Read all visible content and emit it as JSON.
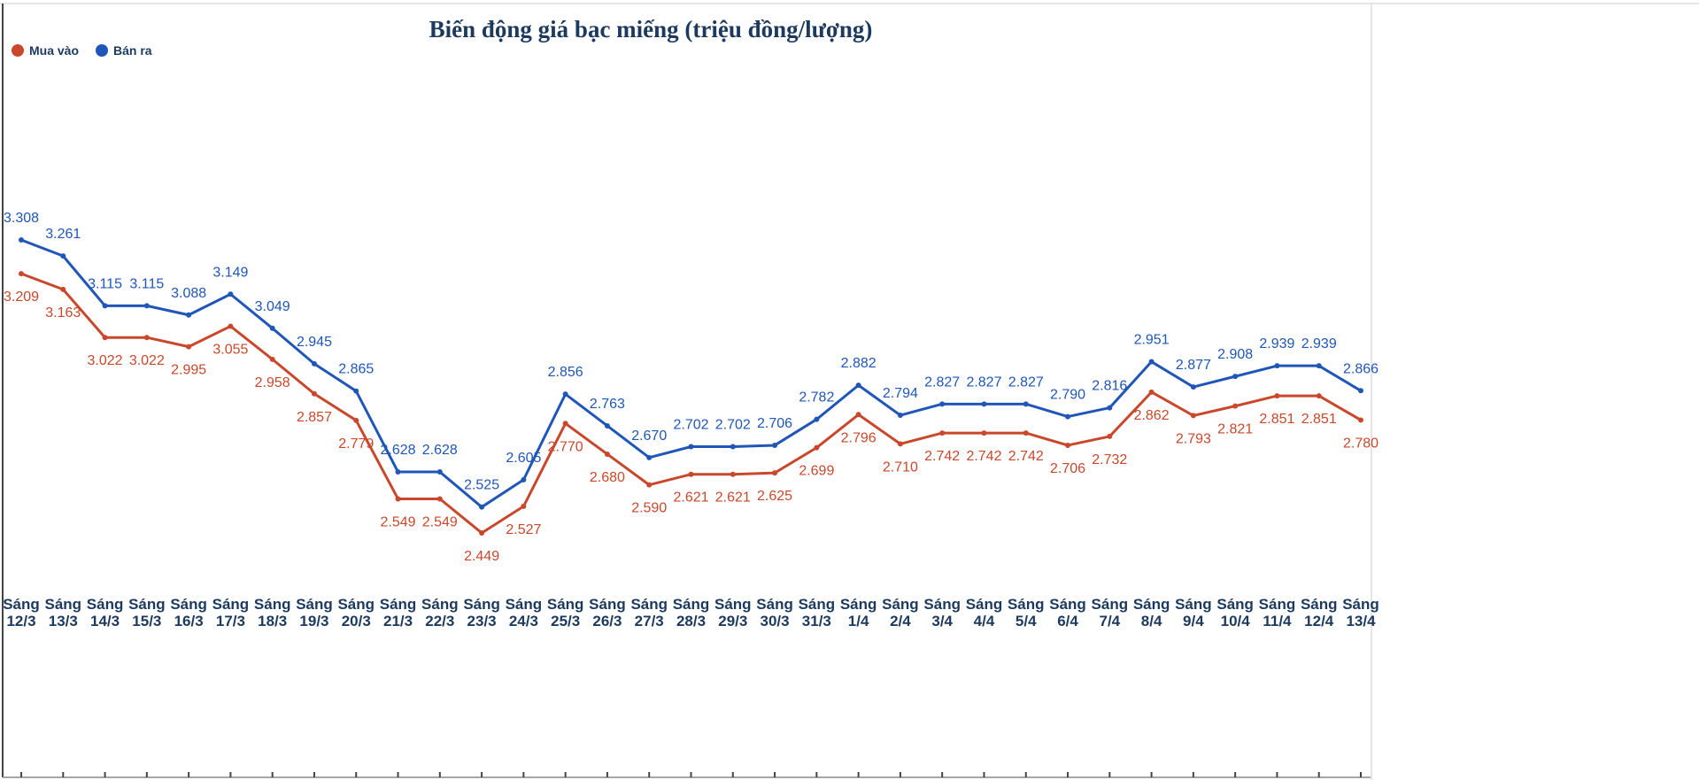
{
  "chart_data": {
    "type": "line",
    "title": "Biến động giá bạc miếng (triệu đồng/lượng)",
    "legend_position": "top-left",
    "grid": false,
    "categories": [
      "Sáng 12/3",
      "Sáng 13/3",
      "Sáng 14/3",
      "Sáng 15/3",
      "Sáng 16/3",
      "Sáng 17/3",
      "Sáng 18/3",
      "Sáng 19/3",
      "Sáng 20/3",
      "Sáng 21/3",
      "Sáng 22/3",
      "Sáng 23/3",
      "Sáng 24/3",
      "Sáng 25/3",
      "Sáng 26/3",
      "Sáng 27/3",
      "Sáng 28/3",
      "Sáng 29/3",
      "Sáng 30/3",
      "Sáng 31/3",
      "Sáng 1/4",
      "Sáng 2/4",
      "Sáng 3/4",
      "Sáng 4/4",
      "Sáng 5/4",
      "Sáng 6/4",
      "Sáng 7/4",
      "Sáng 8/4",
      "Sáng 9/4",
      "Sáng 10/4",
      "Sáng 11/4",
      "Sáng 12/4",
      "Sáng 13/4"
    ],
    "series": [
      {
        "name": "Mua vào",
        "color": "#c9482b",
        "values": [
          3.209,
          3.163,
          3.022,
          3.022,
          2.995,
          3.055,
          2.958,
          2.857,
          2.779,
          2.549,
          2.549,
          2.449,
          2.527,
          2.77,
          2.68,
          2.59,
          2.621,
          2.621,
          2.625,
          2.699,
          2.796,
          2.71,
          2.742,
          2.742,
          2.742,
          2.706,
          2.732,
          2.862,
          2.793,
          2.821,
          2.851,
          2.851,
          2.78
        ]
      },
      {
        "name": "Bán ra",
        "color": "#1f56b8",
        "values": [
          3.308,
          3.261,
          3.115,
          3.115,
          3.088,
          3.149,
          3.049,
          2.945,
          2.865,
          2.628,
          2.628,
          2.525,
          2.605,
          2.856,
          2.763,
          2.67,
          2.702,
          2.702,
          2.706,
          2.782,
          2.882,
          2.794,
          2.827,
          2.827,
          2.827,
          2.79,
          2.816,
          2.951,
          2.877,
          2.908,
          2.939,
          2.939,
          2.866
        ]
      }
    ]
  }
}
